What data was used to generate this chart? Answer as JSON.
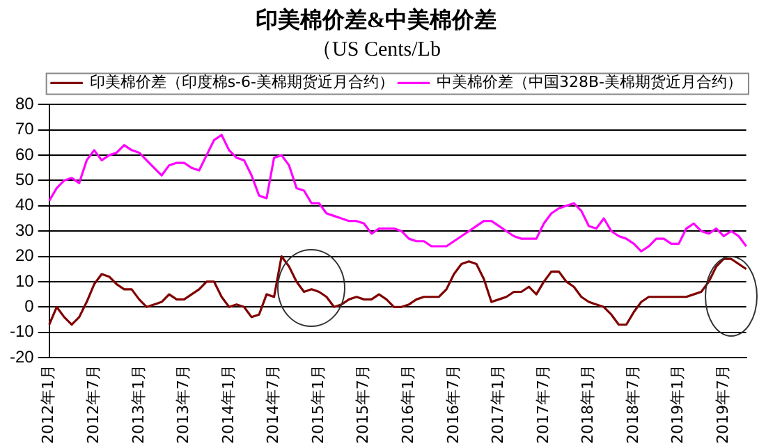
{
  "chart_data": {
    "type": "line",
    "title": "印美棉价差&中美棉价差",
    "subtitle": "（US Cents/Lb",
    "categories": [
      "2012年1月",
      null,
      null,
      null,
      null,
      null,
      "2012年7月",
      null,
      null,
      null,
      null,
      null,
      "2013年1月",
      null,
      null,
      null,
      null,
      null,
      "2013年7月",
      null,
      null,
      null,
      null,
      null,
      "2014年1月",
      null,
      null,
      null,
      null,
      null,
      "2014年7月",
      null,
      null,
      null,
      null,
      null,
      "2015年1月",
      null,
      null,
      null,
      null,
      null,
      "2015年7月",
      null,
      null,
      null,
      null,
      null,
      "2016年1月",
      null,
      null,
      null,
      null,
      null,
      "2016年7月",
      null,
      null,
      null,
      null,
      null,
      "2017年1月",
      null,
      null,
      null,
      null,
      null,
      "2017年7月",
      null,
      null,
      null,
      null,
      null,
      "2018年1月",
      null,
      null,
      null,
      null,
      null,
      "2018年7月",
      null,
      null,
      null,
      null,
      null,
      "2019年1月",
      null,
      null,
      null,
      null,
      null,
      "2019年7月",
      null,
      null,
      null
    ],
    "series": [
      {
        "name": "印美棉价差（印度棉s-6-美棉期货近月合约）",
        "color": "#800000",
        "values": [
          -7,
          0,
          -4,
          -7,
          -4,
          2,
          9,
          13,
          12,
          9,
          7,
          7,
          3,
          0,
          1,
          2,
          5,
          3,
          3,
          5,
          7,
          10,
          10,
          4,
          0,
          1,
          0,
          -4,
          -3,
          5,
          4,
          20,
          16,
          10,
          6,
          7,
          6,
          4,
          0,
          1,
          3,
          4,
          3,
          3,
          5,
          3,
          0,
          0,
          1,
          3,
          4,
          4,
          4,
          7,
          13,
          17,
          18,
          17,
          11,
          2,
          3,
          4,
          6,
          6,
          8,
          5,
          10,
          14,
          14,
          10,
          8,
          4,
          2,
          1,
          0,
          -3,
          -7,
          -7,
          -2,
          2,
          4,
          4,
          4,
          4,
          4,
          4,
          5,
          6,
          10,
          16,
          19,
          19,
          17,
          15
        ]
      },
      {
        "name": "中美棉价差（中国328B-美棉期货近月合约）",
        "color": "#ff00ff",
        "values": [
          42,
          47,
          50,
          51,
          49,
          58,
          62,
          58,
          60,
          61,
          64,
          62,
          61,
          58,
          55,
          52,
          56,
          57,
          57,
          55,
          54,
          60,
          66,
          68,
          62,
          59,
          58,
          52,
          44,
          43,
          59,
          60,
          56,
          47,
          46,
          41,
          41,
          37,
          36,
          35,
          34,
          34,
          33,
          29,
          31,
          31,
          31,
          30,
          27,
          26,
          26,
          24,
          24,
          24,
          26,
          28,
          30,
          32,
          34,
          34,
          32,
          30,
          28,
          27,
          27,
          27,
          33,
          37,
          39,
          40,
          41,
          38,
          32,
          31,
          35,
          30,
          28,
          27,
          25,
          22,
          24,
          27,
          27,
          25,
          25,
          31,
          33,
          30,
          29,
          31,
          28,
          30,
          28,
          24
        ]
      }
    ],
    "ylim": [
      -20,
      80
    ],
    "yticks": [
      -20,
      -10,
      0,
      10,
      20,
      30,
      40,
      50,
      60,
      70,
      80
    ],
    "grid": "y",
    "legend": "top right",
    "marker": "none",
    "line_style": "solid"
  }
}
